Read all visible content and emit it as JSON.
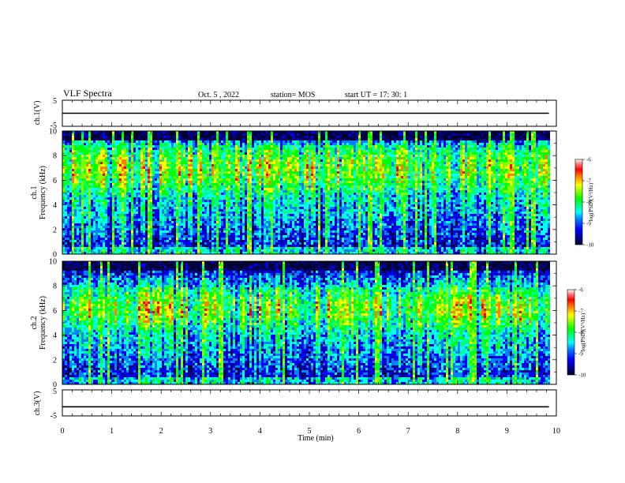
{
  "header": {
    "title": "VLF Spectra",
    "date": "Oct. 5 , 2022",
    "station": "station= MOS",
    "start_ut": "start UT = 17: 30: 1"
  },
  "chart_data": [
    {
      "type": "line",
      "ylabel": "ch.1(V)",
      "ylim": [
        -5,
        5
      ],
      "yticks": [
        "5",
        "-5"
      ],
      "xlim": [
        0,
        10
      ],
      "series": [
        {
          "x": [
            0,
            9.85
          ],
          "y": [
            0,
            0
          ]
        }
      ]
    },
    {
      "type": "heatmap",
      "ylabel_line1": "ch.1",
      "ylabel_line2": "Frequency (kHz)",
      "ylim": [
        0,
        10
      ],
      "yticks": [
        "0",
        "2",
        "4",
        "6",
        "8",
        "10"
      ],
      "xlim": [
        0,
        10
      ],
      "data_x_end": 9.85,
      "colorbar": {
        "label": "log(PSD)(V²/Hz)",
        "range": [
          -10,
          -6
        ],
        "ticks": [
          "-6",
          "-7",
          "-8",
          "-9",
          "-10"
        ]
      },
      "dominant_band_khz": [
        5,
        9
      ]
    },
    {
      "type": "heatmap",
      "ylabel_line1": "ch.2",
      "ylabel_line2": "Frequency (kHz)",
      "ylim": [
        0,
        10
      ],
      "yticks": [
        "0",
        "2",
        "4",
        "6",
        "8",
        "10"
      ],
      "xlim": [
        0,
        10
      ],
      "data_x_end": 9.85,
      "colorbar": {
        "label": "log(PSD)(V²/Hz)",
        "range": [
          -10,
          -6
        ],
        "ticks": [
          "-6",
          "-7",
          "-8",
          "-9",
          "-10"
        ]
      },
      "dominant_band_khz": [
        4.5,
        8
      ]
    },
    {
      "type": "line",
      "ylabel": "ch.3(V)",
      "ylim": [
        -5,
        5
      ],
      "yticks": [
        "5",
        "-5"
      ],
      "xlim": [
        0,
        10
      ],
      "series": [
        {
          "x": [
            0,
            9.85
          ],
          "y": [
            -1.5,
            -1.5
          ]
        }
      ]
    }
  ],
  "xaxis": {
    "label": "Time (min)",
    "ticks": [
      "0",
      "1",
      "2",
      "3",
      "4",
      "5",
      "6",
      "7",
      "8",
      "9",
      "10"
    ]
  },
  "colormap": [
    "#000033",
    "#00008b",
    "#0000ff",
    "#0080ff",
    "#00ffff",
    "#00ff80",
    "#00ff00",
    "#80ff00",
    "#ffff00",
    "#ff8000",
    "#ff0000",
    "#ff8080",
    "#ffffff"
  ]
}
